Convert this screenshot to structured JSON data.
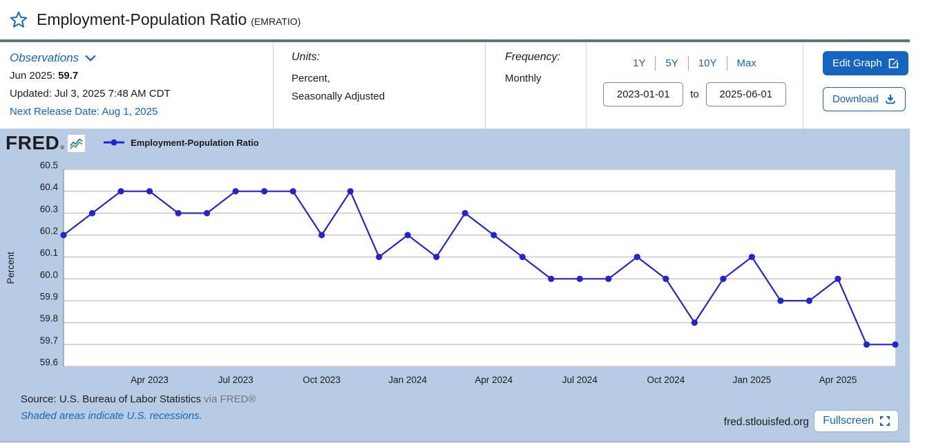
{
  "header": {
    "title": "Employment-Population Ratio",
    "series_id": "(EMRATIO)"
  },
  "info": {
    "observations": {
      "label": "Observations",
      "latest_label": "Jun 2025:",
      "latest_value": "59.7",
      "updated": "Updated: Jul 3, 2025 7:48 AM CDT",
      "next_release": "Next Release Date: Aug 1, 2025"
    },
    "units": {
      "label": "Units:",
      "line1": "Percent,",
      "line2": "Seasonally Adjusted"
    },
    "frequency": {
      "label": "Frequency:",
      "value": "Monthly"
    },
    "range": {
      "presets": [
        "1Y",
        "5Y",
        "10Y",
        "Max"
      ],
      "start_date": "2023-01-01",
      "to_label": "to",
      "end_date": "2025-06-01"
    },
    "actions": {
      "edit_graph": "Edit Graph",
      "download": "Download"
    }
  },
  "chart": {
    "logo_text": "FRED",
    "logo_reg": "®",
    "legend_label": "Employment-Population Ratio",
    "footer": {
      "source_prefix": "Source: U.S. Bureau of Labor Statistics",
      "source_suffix": "via FRED®",
      "recessions_note": "Shaded areas indicate U.S. recessions.",
      "site": "fred.stlouisfed.org",
      "fullscreen_label": "Fullscreen"
    }
  },
  "chart_data": {
    "type": "line",
    "series_name": "Employment-Population Ratio",
    "x": [
      "Jan 2023",
      "Feb 2023",
      "Mar 2023",
      "Apr 2023",
      "May 2023",
      "Jun 2023",
      "Jul 2023",
      "Aug 2023",
      "Sep 2023",
      "Oct 2023",
      "Nov 2023",
      "Dec 2023",
      "Jan 2024",
      "Feb 2024",
      "Mar 2024",
      "Apr 2024",
      "May 2024",
      "Jun 2024",
      "Jul 2024",
      "Aug 2024",
      "Sep 2024",
      "Oct 2024",
      "Nov 2024",
      "Dec 2024",
      "Jan 2025",
      "Feb 2025",
      "Mar 2025",
      "Apr 2025",
      "May 2025",
      "Jun 2025"
    ],
    "values": [
      60.2,
      60.3,
      60.4,
      60.4,
      60.3,
      60.3,
      60.4,
      60.4,
      60.4,
      60.2,
      60.4,
      60.1,
      60.2,
      60.1,
      60.3,
      60.2,
      60.1,
      60.0,
      60.0,
      60.0,
      60.1,
      60.0,
      59.8,
      60.0,
      60.1,
      59.9,
      59.9,
      60.0,
      59.7,
      59.7
    ],
    "ylabel": "Percent",
    "ylim": [
      59.6,
      60.5
    ],
    "yticks": [
      "60.5",
      "60.4",
      "60.3",
      "60.2",
      "60.1",
      "60.0",
      "59.9",
      "59.8",
      "59.7",
      "59.6"
    ],
    "xticks": [
      "Apr 2023",
      "Jul 2023",
      "Oct 2023",
      "Jan 2024",
      "Apr 2024",
      "Jul 2024",
      "Oct 2024",
      "Jan 2025",
      "Apr 2025"
    ],
    "grid": true,
    "legend_position": "top-left",
    "line_color": "#2424cc",
    "grid_color": "#c9c9c9",
    "axis_color": "#8f8f8f"
  },
  "colors": {
    "accent_blue": "#1565c0",
    "series_blue": "#2424cc",
    "panel_background": "#b7cce4",
    "header_divider": "#5b7585"
  }
}
